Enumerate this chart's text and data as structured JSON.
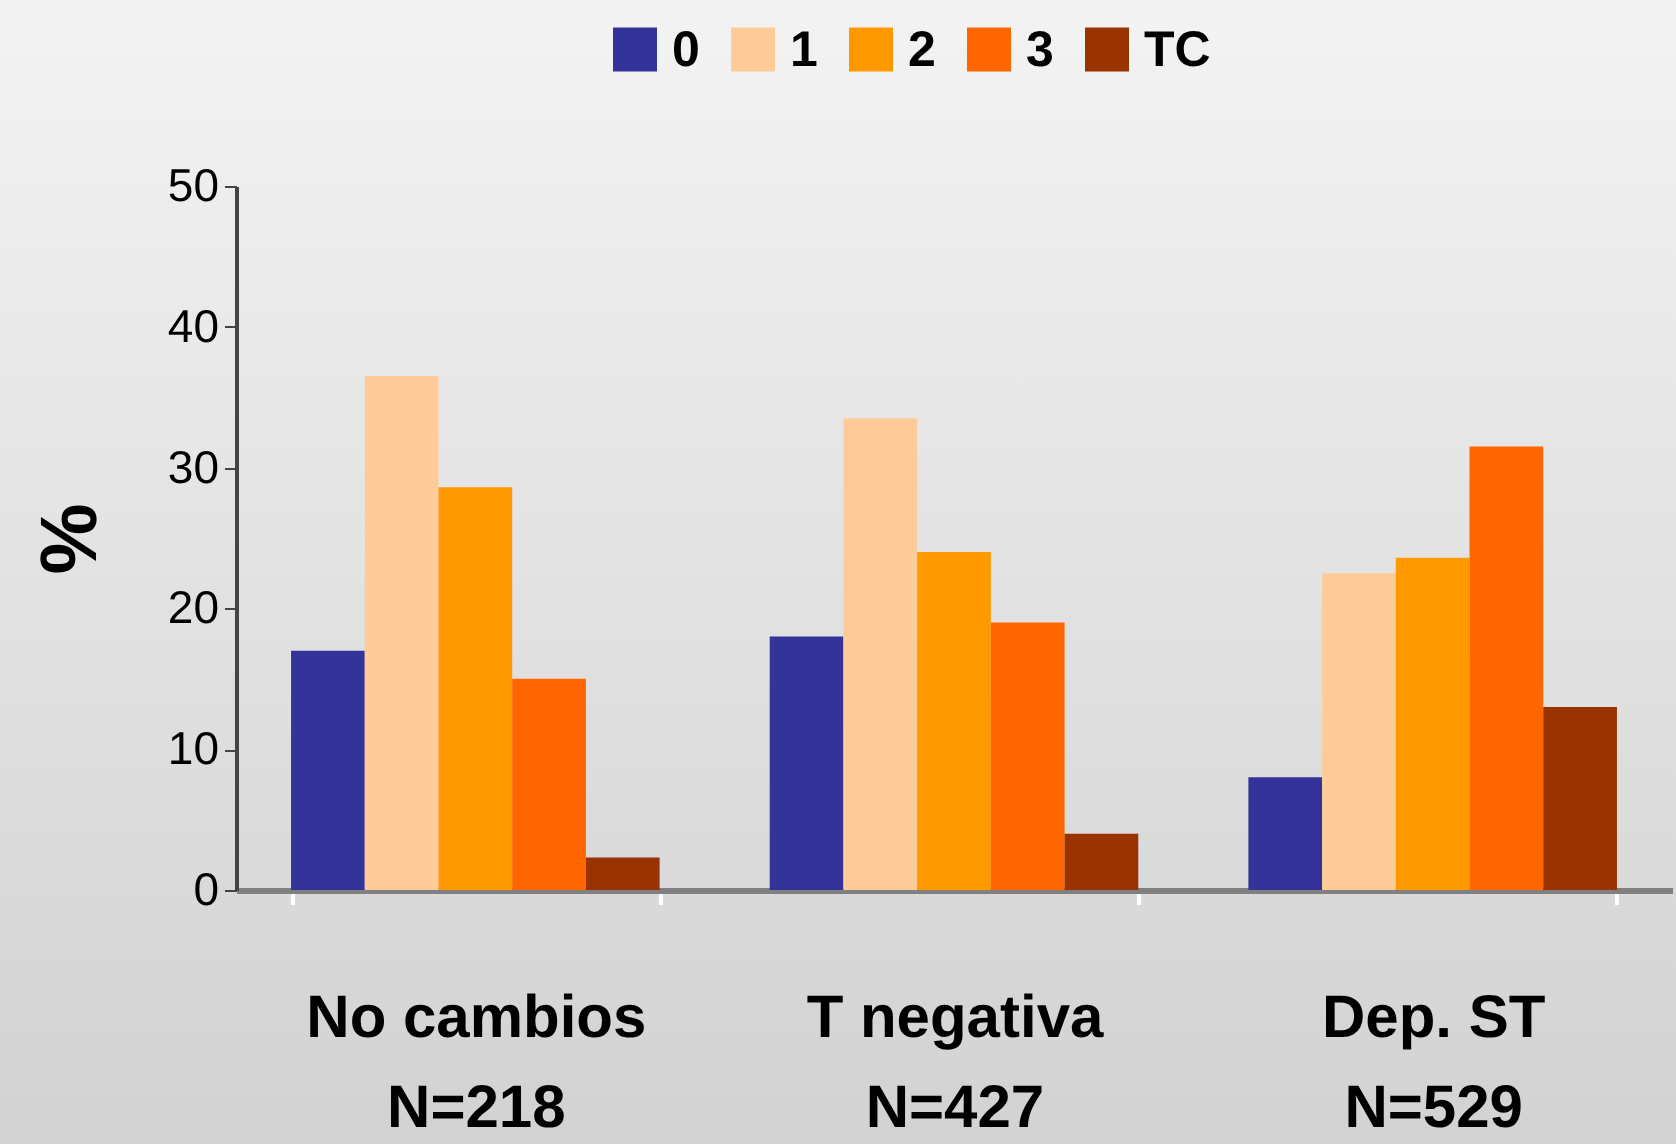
{
  "chart_data": {
    "type": "bar",
    "categories": [
      "No cambios\nN=218",
      "T negativa\nN=427",
      "Dep. ST\nN=529"
    ],
    "ylabel": "%",
    "ylim": [
      0,
      50
    ],
    "yticks": [
      0,
      10,
      20,
      30,
      40,
      50
    ],
    "grid": false,
    "legend": "top",
    "series": [
      {
        "name": "0",
        "color": "#333399",
        "values": [
          17,
          18,
          8
        ]
      },
      {
        "name": "1",
        "color": "#ffcc99",
        "values": [
          36.5,
          33.5,
          22.5
        ]
      },
      {
        "name": "2",
        "color": "#ff9900",
        "values": [
          28.6,
          24,
          23.6
        ]
      },
      {
        "name": "3",
        "color": "#ff6600",
        "values": [
          15,
          19,
          31.5
        ]
      },
      {
        "name": "TC",
        "color": "#993300",
        "values": [
          2.3,
          4,
          13
        ]
      }
    ]
  }
}
